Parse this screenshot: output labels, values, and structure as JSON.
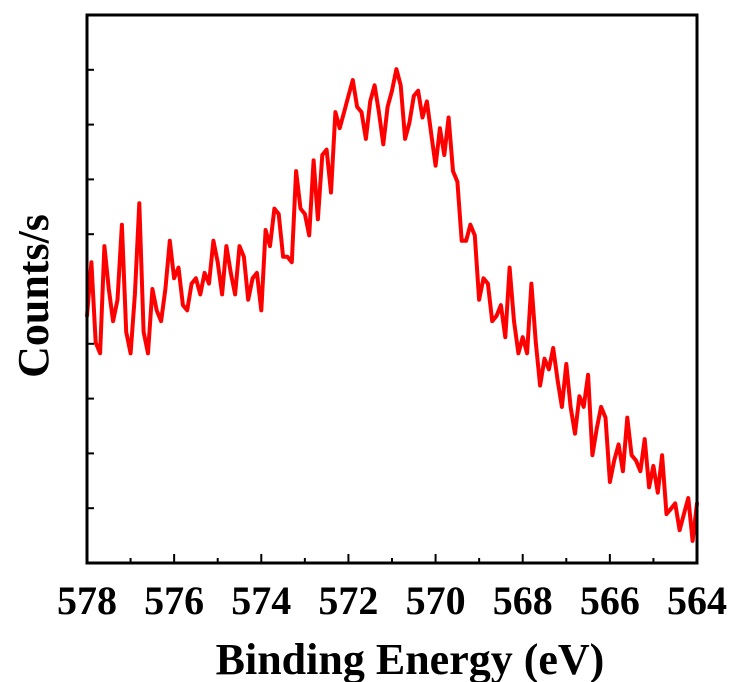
{
  "chart_data": {
    "type": "line",
    "title": "",
    "xlabel": "Binding Energy (eV)",
    "ylabel": "Counts/s",
    "xlim": [
      578,
      564
    ],
    "x_reversed": true,
    "x_ticks": [
      "578",
      "576",
      "574",
      "572",
      "570",
      "568",
      "566",
      "564"
    ],
    "y_tick_labels_shown": false,
    "ylim": [
      0,
      100
    ],
    "grid": false,
    "legend": "none",
    "series": [
      {
        "color": "#ff0000",
        "x": [
          578.0,
          577.9,
          577.8,
          577.7,
          577.6,
          577.5,
          577.4,
          577.3,
          577.2,
          577.1,
          577.0,
          576.9,
          576.8,
          576.7,
          576.6,
          576.5,
          576.4,
          576.3,
          576.2,
          576.1,
          576.0,
          575.9,
          575.8,
          575.7,
          575.6,
          575.5,
          575.4,
          575.3,
          575.2,
          575.1,
          575.0,
          574.9,
          574.8,
          574.7,
          574.6,
          574.5,
          574.4,
          574.3,
          574.2,
          574.1,
          574.0,
          573.9,
          573.8,
          573.7,
          573.6,
          573.5,
          573.4,
          573.3,
          573.2,
          573.1,
          573.0,
          572.9,
          572.8,
          572.7,
          572.6,
          572.5,
          572.4,
          572.3,
          572.2,
          572.1,
          572.0,
          571.9,
          571.8,
          571.7,
          571.6,
          571.5,
          571.4,
          571.3,
          571.2,
          571.1,
          571.0,
          570.9,
          570.8,
          570.7,
          570.6,
          570.5,
          570.4,
          570.3,
          570.2,
          570.1,
          570.0,
          569.9,
          569.8,
          569.7,
          569.6,
          569.5,
          569.4,
          569.3,
          569.2,
          569.1,
          569.0,
          568.9,
          568.8,
          568.7,
          568.6,
          568.5,
          568.4,
          568.3,
          568.2,
          568.1,
          568.0,
          567.9,
          567.8,
          567.7,
          567.6,
          567.5,
          567.4,
          567.3,
          567.2,
          567.1,
          567.0,
          566.9,
          566.8,
          566.7,
          566.6,
          566.5,
          566.4,
          566.3,
          566.2,
          566.1,
          566.0,
          565.9,
          565.8,
          565.7,
          565.6,
          565.5,
          565.4,
          565.3,
          565.2,
          565.1,
          565.0,
          564.9,
          564.8,
          564.7,
          564.6,
          564.5,
          564.4,
          564.3,
          564.2,
          564.1,
          564.0
        ],
        "y": [
          45,
          55,
          40,
          38,
          58,
          50,
          44,
          48,
          62,
          42,
          38,
          49,
          66,
          42,
          38,
          50,
          46,
          44,
          50,
          59,
          52,
          54,
          47,
          46,
          51,
          52,
          49,
          53,
          51,
          59,
          55,
          49,
          58,
          53,
          49,
          58,
          56,
          48,
          52,
          53,
          46,
          61,
          58,
          65,
          64,
          56,
          56,
          55,
          72,
          65,
          64,
          60,
          74,
          63,
          75,
          76,
          68,
          83,
          80,
          83,
          86,
          89,
          84,
          83,
          78,
          85,
          88,
          83,
          77,
          84,
          87,
          91,
          88,
          78,
          81,
          86,
          87,
          82,
          85,
          79,
          73,
          80,
          75,
          82,
          72,
          70,
          59,
          59,
          62,
          60,
          48,
          52,
          51,
          44,
          45,
          47,
          41,
          54,
          44,
          38,
          41,
          38,
          51,
          40,
          32,
          37,
          35,
          39,
          33,
          28,
          36,
          28,
          23,
          30,
          28,
          34,
          19,
          24,
          28,
          26,
          14,
          18,
          21,
          16,
          26,
          19,
          18,
          16,
          22,
          13,
          17,
          12,
          19,
          8,
          9,
          10,
          5,
          8,
          11,
          3,
          10
        ]
      }
    ]
  }
}
